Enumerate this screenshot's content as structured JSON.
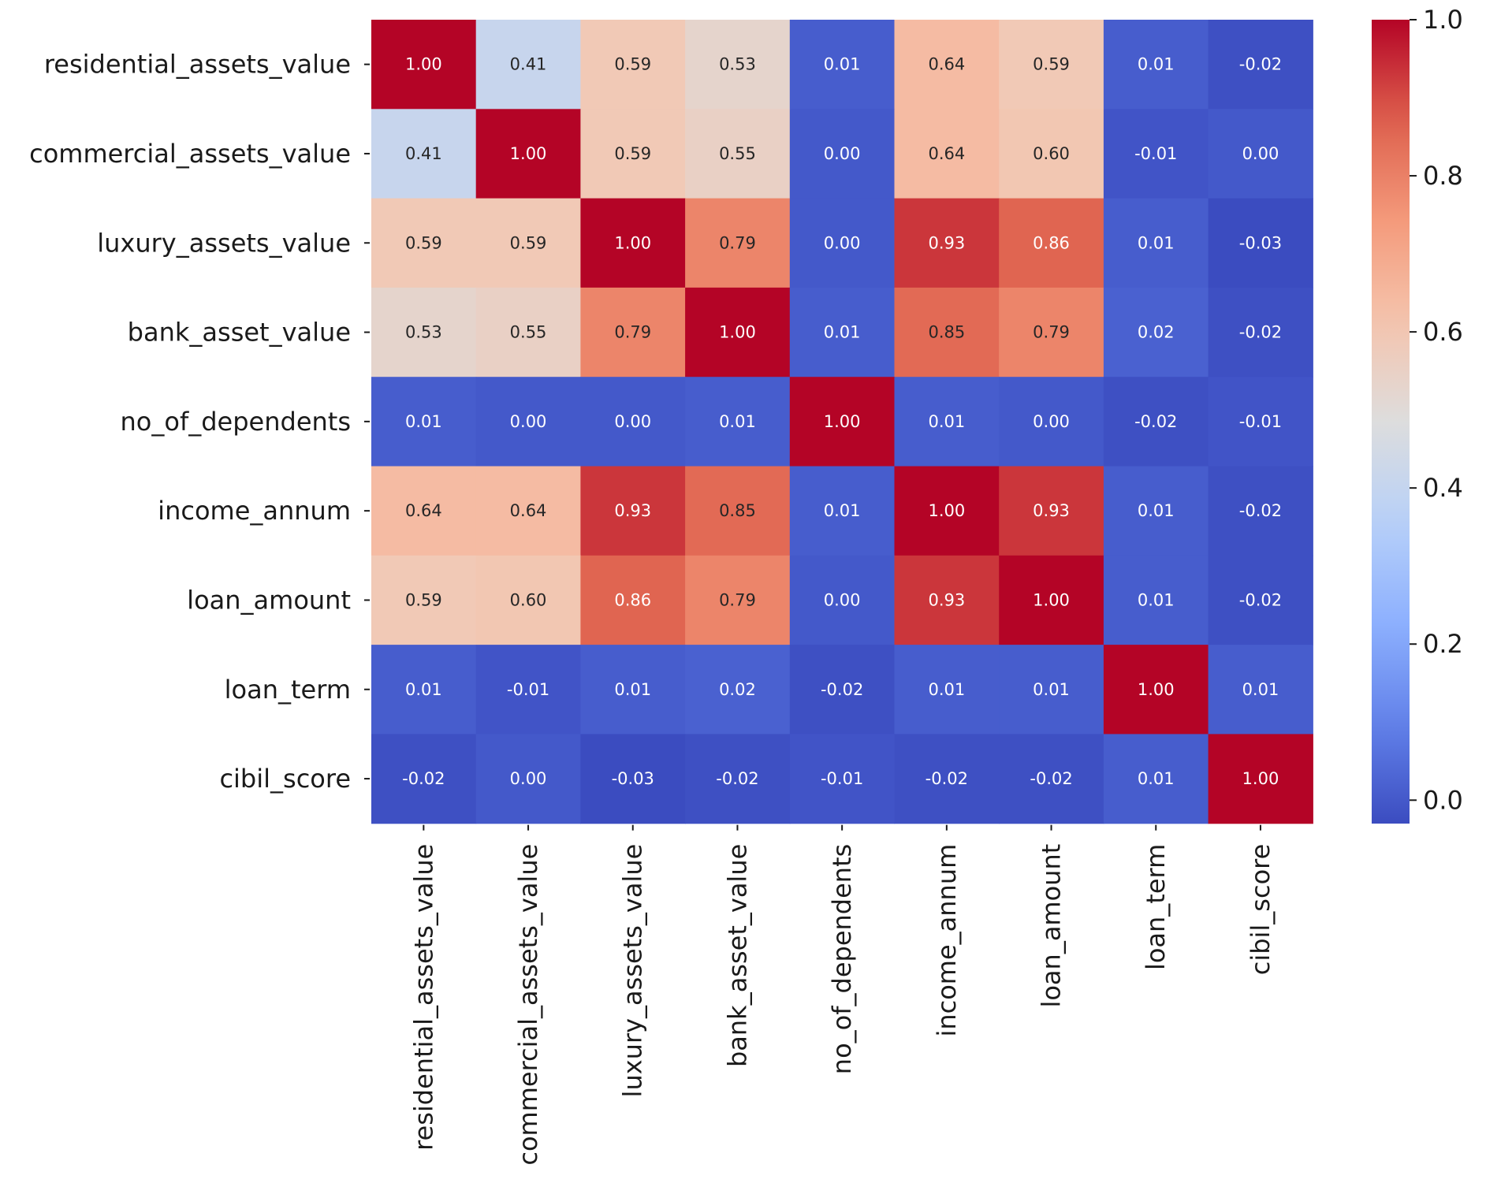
{
  "chart_data": {
    "type": "heatmap",
    "title": "",
    "xlabel": "",
    "ylabel": "",
    "variables": [
      "residential_assets_value",
      "commercial_assets_value",
      "luxury_assets_value",
      "bank_asset_value",
      "no_of_dependents",
      "income_annum",
      "loan_amount",
      "loan_term",
      "cibil_score"
    ],
    "values": [
      [
        1.0,
        0.41,
        0.59,
        0.53,
        0.01,
        0.64,
        0.59,
        0.01,
        -0.02
      ],
      [
        0.41,
        1.0,
        0.59,
        0.55,
        -0.0,
        0.64,
        0.6,
        -0.01,
        -0.0
      ],
      [
        0.59,
        0.59,
        1.0,
        0.79,
        0.0,
        0.93,
        0.86,
        0.01,
        -0.03
      ],
      [
        0.53,
        0.55,
        0.79,
        1.0,
        0.01,
        0.85,
        0.79,
        0.02,
        -0.02
      ],
      [
        0.01,
        -0.0,
        0.0,
        0.01,
        1.0,
        0.01,
        -0.0,
        -0.02,
        -0.01
      ],
      [
        0.64,
        0.64,
        0.93,
        0.85,
        0.01,
        1.0,
        0.93,
        0.01,
        -0.02
      ],
      [
        0.59,
        0.6,
        0.86,
        0.79,
        -0.0,
        0.93,
        1.0,
        0.01,
        -0.02
      ],
      [
        0.01,
        -0.01,
        0.01,
        0.02,
        -0.02,
        0.01,
        0.01,
        1.0,
        0.01
      ],
      [
        -0.02,
        -0.0,
        -0.03,
        -0.02,
        -0.01,
        -0.02,
        -0.02,
        0.01,
        1.0
      ]
    ],
    "annotation_format": "0.00",
    "colormap": "coolwarm",
    "value_range": [
      -0.03,
      1.0
    ],
    "colorbar": {
      "ticks": [
        0.0,
        0.2,
        0.4,
        0.6,
        0.8,
        1.0
      ],
      "tick_labels": [
        "0.0",
        "0.2",
        "0.4",
        "0.6",
        "0.8",
        "1.0"
      ],
      "placement": "right"
    }
  }
}
